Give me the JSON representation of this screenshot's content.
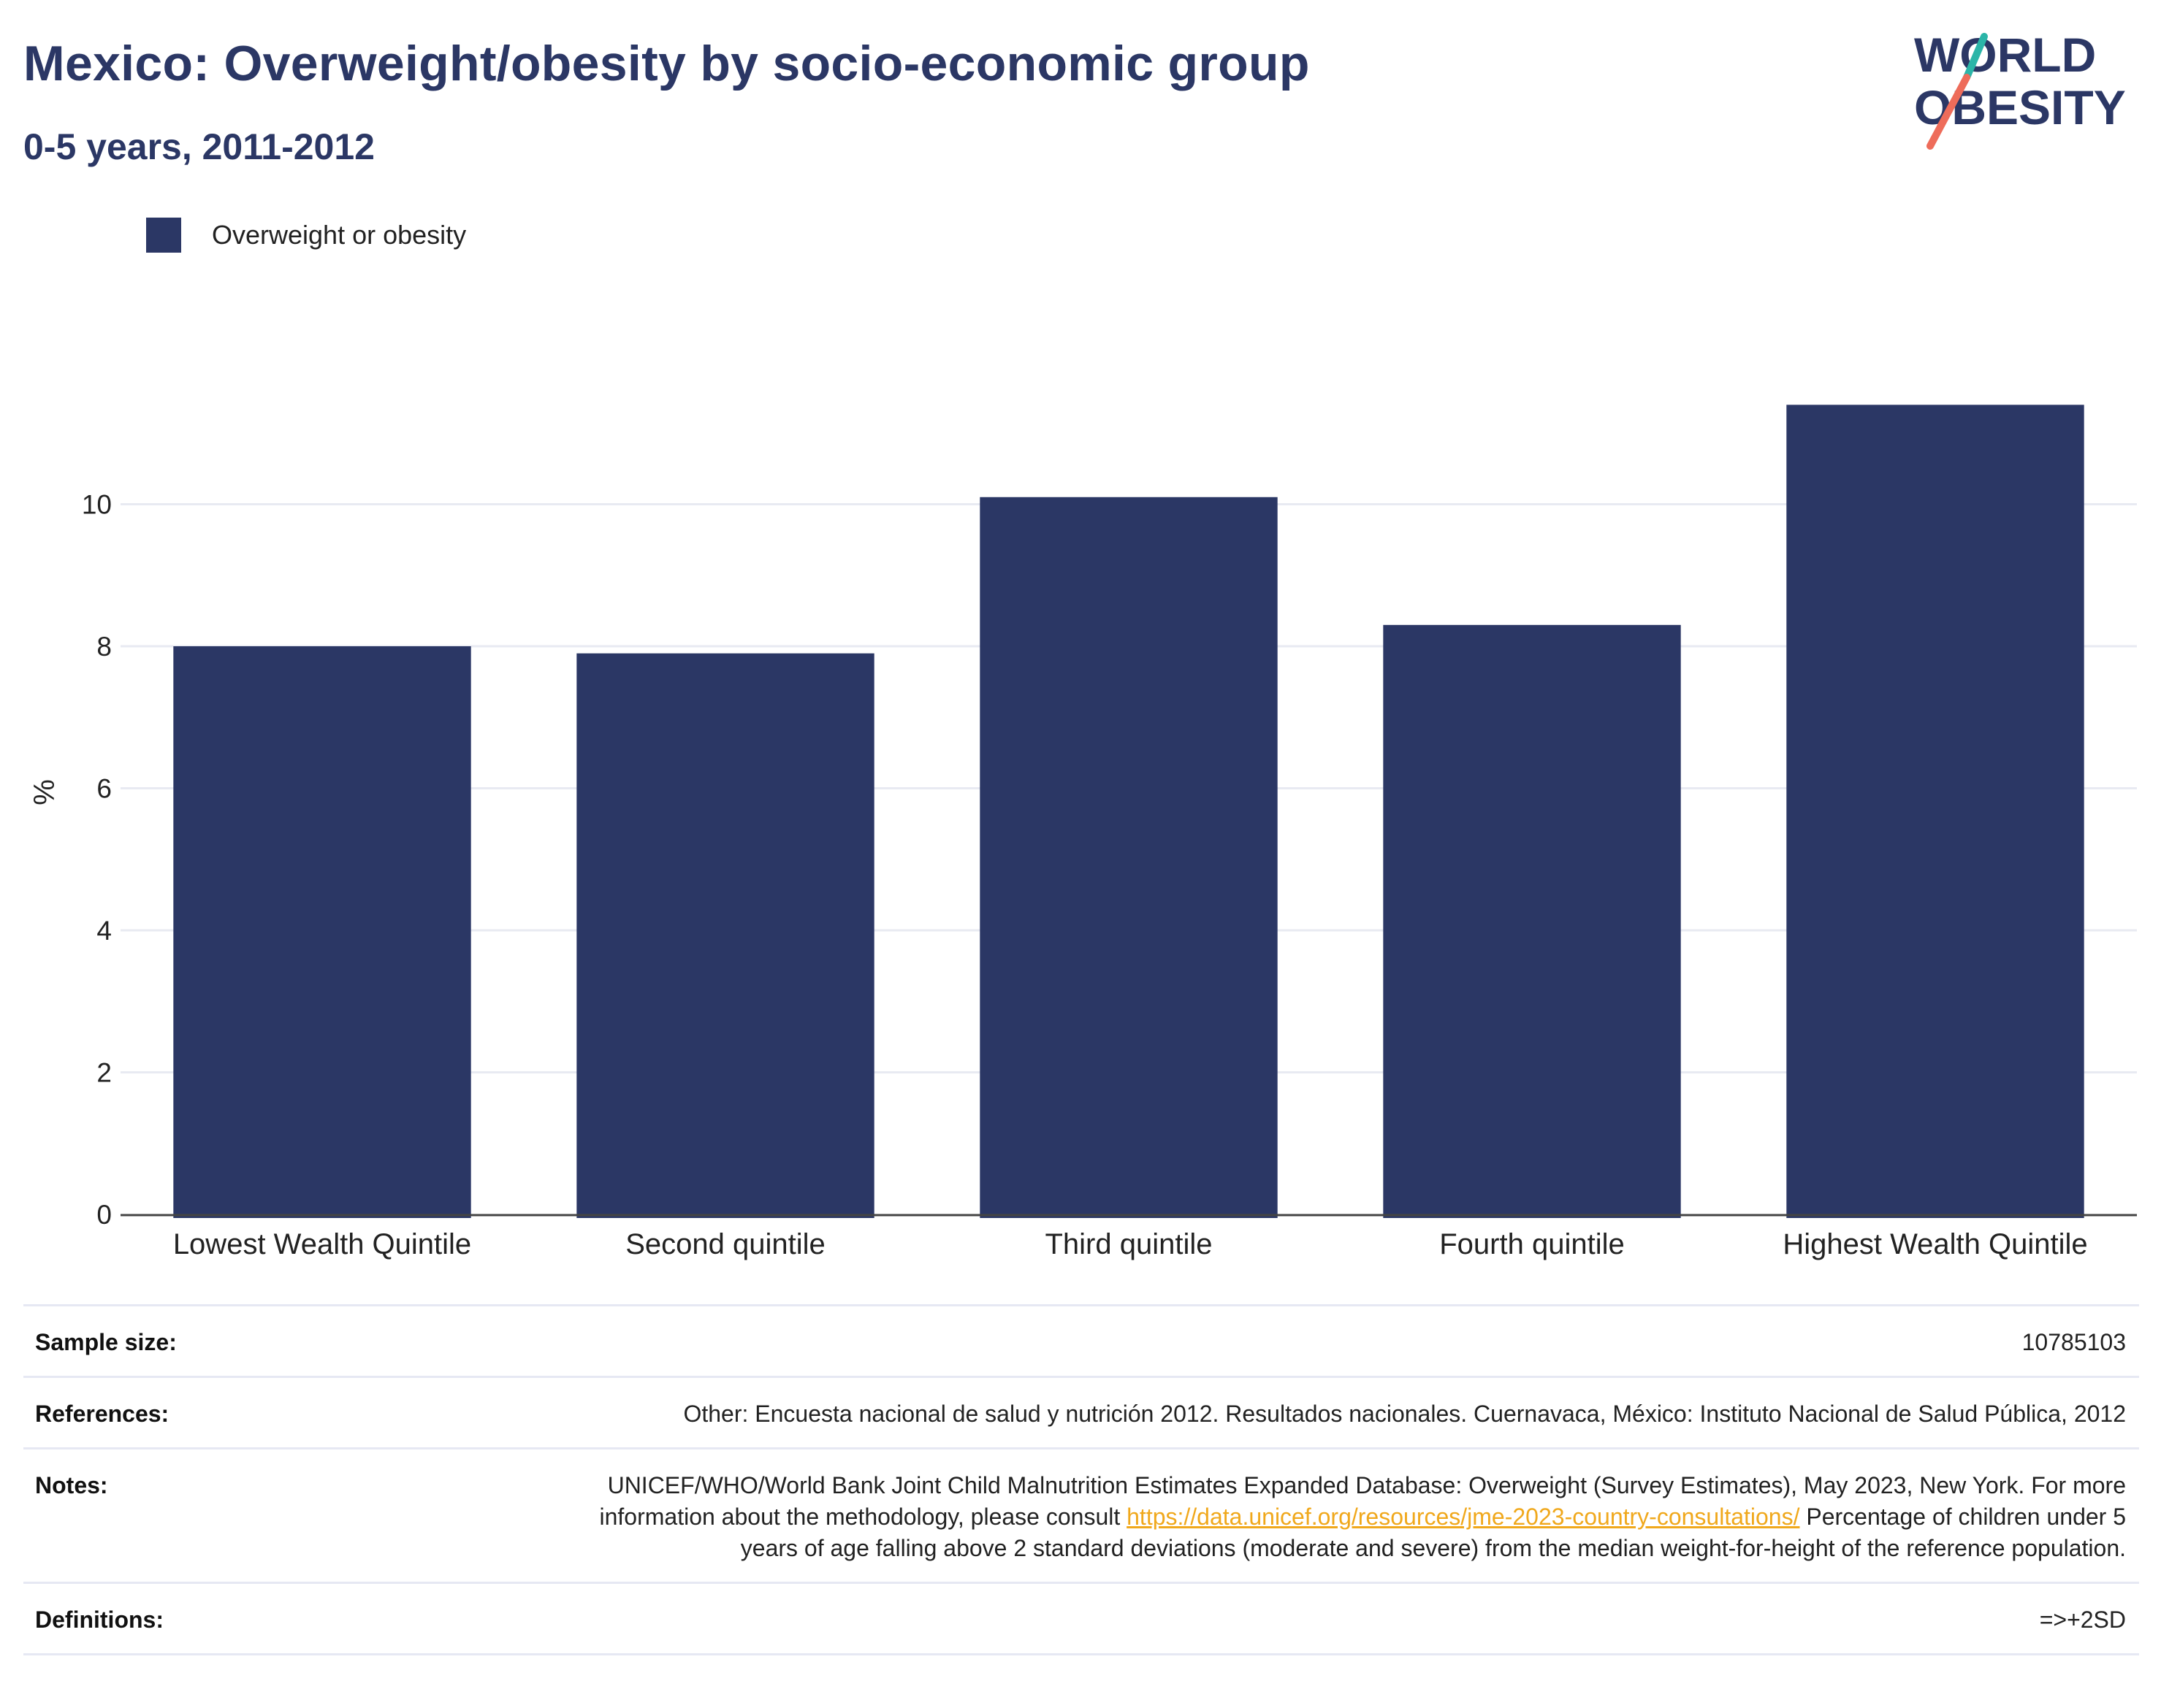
{
  "header": {
    "title": "Mexico: Overweight/obesity by socio-economic group",
    "subtitle": "0-5 years, 2011-2012"
  },
  "logo": {
    "line1": "WORLD",
    "line2": "OBESITY",
    "colors": {
      "text": "#2b3765",
      "slash_top": "#2bb5a8",
      "slash_bottom": "#ee6c5a"
    }
  },
  "colors": {
    "bar": "#2b3765",
    "grid": "#e8eaf2",
    "axis": "#444444"
  },
  "legend": {
    "items": [
      {
        "label": "Overweight or obesity",
        "color": "#2b3765"
      }
    ]
  },
  "chart_data": {
    "type": "bar",
    "categories": [
      "Lowest Wealth Quintile",
      "Second quintile",
      "Third quintile",
      "Fourth quintile",
      "Highest Wealth Quintile"
    ],
    "series": [
      {
        "name": "Overweight or obesity",
        "values": [
          8.0,
          7.9,
          10.1,
          8.3,
          11.4
        ]
      }
    ],
    "ylabel": "%",
    "ylim": [
      0,
      12
    ],
    "yticks": [
      0,
      2,
      4,
      6,
      8,
      10
    ],
    "grid": true,
    "legend_position": "top-left"
  },
  "info": {
    "sample_size": {
      "label": "Sample size:",
      "value": "10785103"
    },
    "references": {
      "label": "References:",
      "value": "Other: Encuesta nacional de salud y nutrición 2012. Resultados nacionales. Cuernavaca, México: Instituto Nacional de Salud Pública, 2012"
    },
    "notes": {
      "label": "Notes:",
      "text_before": "UNICEF/WHO/World Bank Joint Child Malnutrition Estimates Expanded Database: Overweight (Survey Estimates), May 2023, New York. For more information about the methodology, please consult ",
      "link": "https://data.unicef.org/resources/jme-2023-country-consultations/",
      "text_after": " Percentage of children under 5 years of age falling above 2 standard deviations (moderate and severe) from the median weight-for-height of the reference population."
    },
    "definitions": {
      "label": "Definitions:",
      "value": "=>+2SD"
    }
  }
}
